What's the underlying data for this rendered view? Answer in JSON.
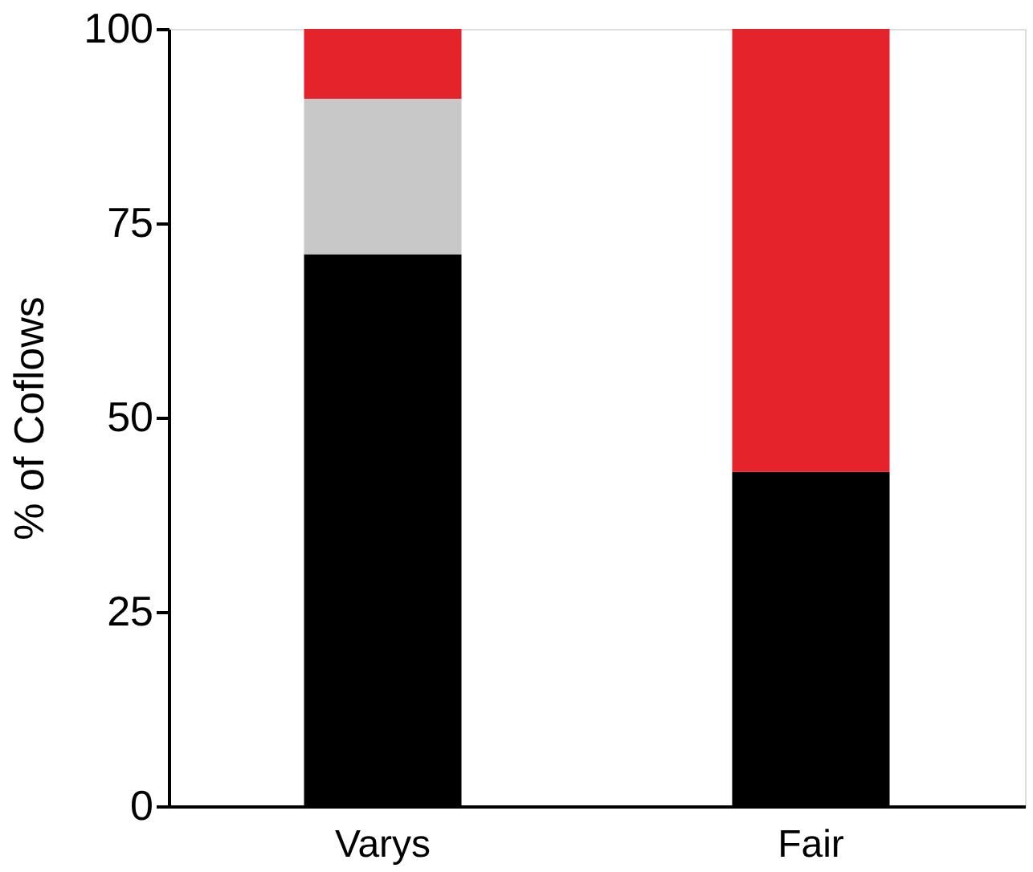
{
  "chart_data": {
    "type": "bar",
    "stacked": true,
    "ylabel": "% of Coflows",
    "categories": [
      "Varys",
      "Fair"
    ],
    "series": [
      {
        "color": "#000000",
        "values": [
          71,
          43
        ]
      },
      {
        "color": "#c8c8c8",
        "values": [
          20,
          0
        ]
      },
      {
        "color": "#e4232a",
        "values": [
          9,
          57
        ]
      }
    ],
    "ylim": [
      0,
      100
    ],
    "yticks": [
      0,
      25,
      50,
      75,
      100
    ],
    "grid": false,
    "legend": false
  }
}
